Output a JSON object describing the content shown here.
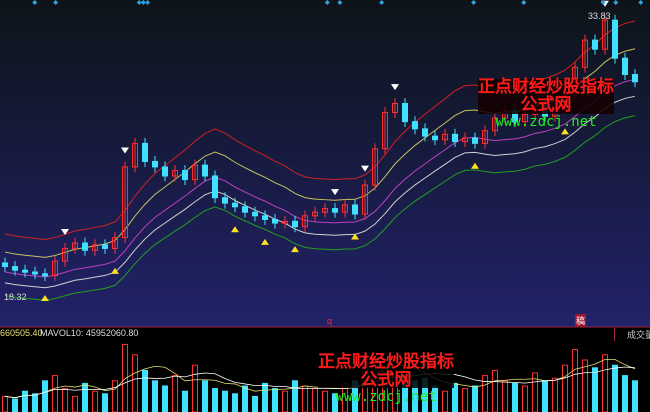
{
  "chart_data": {
    "type": "candlestick",
    "price_range": [
      18.32,
      33.83
    ],
    "labels": {
      "high": "33.83",
      "low": "18.32"
    },
    "close": [
      20.0,
      19.8,
      19.7,
      19.6,
      19.5,
      20.3,
      21.0,
      21.3,
      20.9,
      21.2,
      21.0,
      21.6,
      25.5,
      26.8,
      25.8,
      25.5,
      25.0,
      25.3,
      24.8,
      25.6,
      25.0,
      23.8,
      23.5,
      23.3,
      23.0,
      22.8,
      22.6,
      22.4,
      22.5,
      22.2,
      22.8,
      23.0,
      23.2,
      23.0,
      23.4,
      22.9,
      24.5,
      26.5,
      28.5,
      29.0,
      28.0,
      27.6,
      27.2,
      27.0,
      27.3,
      26.9,
      27.1,
      26.8,
      27.5,
      28.2,
      28.6,
      28.0,
      28.4,
      28.9,
      28.3,
      28.7,
      29.5,
      31.0,
      32.5,
      32.0,
      33.6,
      31.5,
      30.6,
      30.2
    ],
    "volume": [
      30,
      25,
      40,
      35,
      60,
      70,
      45,
      30,
      55,
      40,
      35,
      60,
      130,
      110,
      80,
      60,
      50,
      70,
      40,
      90,
      60,
      45,
      40,
      35,
      50,
      30,
      55,
      45,
      40,
      60,
      50,
      45,
      40,
      35,
      55,
      60,
      90,
      110,
      100,
      80,
      70,
      60,
      65,
      50,
      40,
      55,
      45,
      50,
      70,
      80,
      60,
      55,
      50,
      75,
      60,
      65,
      90,
      120,
      100,
      85,
      110,
      90,
      70,
      60
    ],
    "volume_unit": "millions",
    "buy_signals": [
      4,
      11,
      23,
      26,
      29,
      35,
      47,
      56
    ],
    "sell_signals": [
      6,
      12,
      33,
      36,
      39,
      60
    ],
    "top_markers": [
      4,
      9,
      29,
      30,
      31,
      74,
      77,
      87,
      109,
      121,
      140,
      143,
      149
    ],
    "colors": {
      "up": "#ff3030",
      "down": "#40e0ff",
      "upper": "#d02020",
      "upper2": "#c8c060",
      "mid": "#c040c0",
      "lower": "#d0d0d0",
      "lower2": "#20a020",
      "buy": "#ffe020",
      "sell": "#ffffff",
      "marker": "#30a0e0"
    }
  },
  "volume_panel": {
    "mavol5": "660505.40",
    "mavol10": "MAVOL10: 45952060.80",
    "title": "成交量"
  },
  "watermarks": [
    {
      "text": "正点财经炒股指标公式网",
      "url": "www.zdcj.net"
    },
    {
      "text": "正点财经炒股指标公式网",
      "url": "www.zdcj.net"
    }
  ],
  "markers": {
    "q": "q",
    "flag": "稿"
  }
}
